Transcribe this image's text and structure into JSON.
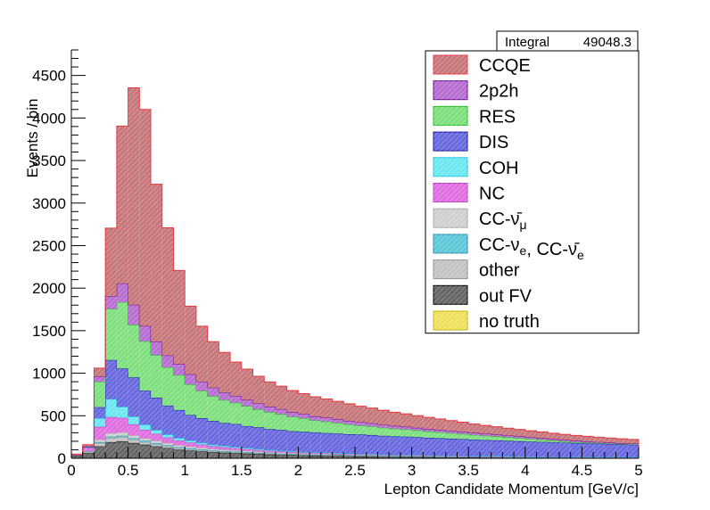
{
  "chart_data": {
    "type": "bar",
    "stacked": true,
    "xlabel": "Lepton Candidate Momentum [GeV/c]",
    "ylabel": "Events / bin",
    "xlim": [
      0,
      5
    ],
    "ylim": [
      0,
      4800
    ],
    "x_ticks": [
      0,
      0.5,
      1,
      1.5,
      2,
      2.5,
      3,
      3.5,
      4,
      4.5,
      5
    ],
    "x_tick_labels": [
      "0",
      "0.5",
      "1",
      "1.5",
      "2",
      "2.5",
      "3",
      "3.5",
      "4",
      "4.5",
      "5"
    ],
    "y_ticks": [
      0,
      500,
      1000,
      1500,
      2000,
      2500,
      3000,
      3500,
      4000,
      4500
    ],
    "y_tick_labels": [
      "0",
      "500",
      "1000",
      "1500",
      "2000",
      "2500",
      "3000",
      "3500",
      "4000",
      "4500"
    ],
    "stats": {
      "label": "Integral",
      "value": "49048.3"
    },
    "legend_position": "top-right",
    "legend": [
      {
        "label": "CCQE",
        "color": "#c8787d",
        "edge": "#e8383d"
      },
      {
        "label": "2p2h",
        "color": "#b86fd2",
        "edge": "#6a0d8f"
      },
      {
        "label": "RES",
        "color": "#80e080",
        "edge": "#22c022"
      },
      {
        "label": "DIS",
        "color": "#6a6ae0",
        "edge": "#1616a0"
      },
      {
        "label": "COH",
        "color": "#6ee8f0",
        "edge": "#20c8e0"
      },
      {
        "label": "NC",
        "color": "#e070e0",
        "edge": "#c040c0"
      },
      {
        "label": "CC-ν̄μ",
        "color": "#d0d0d0",
        "edge": "#a8a8a8"
      },
      {
        "label": "CC-νe, CC-ν̄e",
        "color": "#60c8d8",
        "edge": "#3090b0"
      },
      {
        "label": "other",
        "color": "#c4c4c4",
        "edge": "#909090"
      },
      {
        "label": "out FV",
        "color": "#666666",
        "edge": "#000000"
      },
      {
        "label": "no truth",
        "color": "#f0e060",
        "edge": "#c8b400"
      }
    ],
    "bin_edges": [
      0,
      0.1,
      0.2,
      0.3,
      0.4,
      0.5,
      0.6,
      0.7,
      0.8,
      0.9,
      1.0,
      1.1,
      1.2,
      1.3,
      1.4,
      1.5,
      1.6,
      1.7,
      1.8,
      1.9,
      2.0,
      2.1,
      2.2,
      2.3,
      2.4,
      2.5,
      2.6,
      2.7,
      2.8,
      2.9,
      3.0,
      3.1,
      3.2,
      3.3,
      3.4,
      3.5,
      3.6,
      3.7,
      3.8,
      3.9,
      4.0,
      4.1,
      4.2,
      4.3,
      4.4,
      4.5,
      4.6,
      4.7,
      4.8,
      4.9,
      5.0
    ],
    "series": [
      {
        "name": "out FV",
        "values": [
          30,
          60,
          140,
          190,
          200,
          180,
          160,
          140,
          120,
          100,
          90,
          80,
          70,
          65,
          60,
          55,
          50,
          45,
          40,
          38,
          35,
          32,
          30,
          28,
          26,
          24,
          22,
          20,
          18,
          17,
          16,
          15,
          14,
          13,
          12,
          11,
          10,
          10,
          9,
          9,
          8,
          8,
          7,
          7,
          6,
          6,
          6,
          5,
          5,
          5
        ]
      },
      {
        "name": "other",
        "values": [
          5,
          15,
          40,
          50,
          50,
          40,
          30,
          25,
          20,
          18,
          16,
          14,
          12,
          10,
          9,
          8,
          7,
          6,
          5,
          5,
          4,
          4,
          4,
          3,
          3,
          3,
          3,
          2,
          2,
          2,
          2,
          2,
          2,
          2,
          2,
          2,
          2,
          2,
          1,
          1,
          1,
          1,
          1,
          1,
          1,
          1,
          1,
          1,
          1,
          1
        ]
      },
      {
        "name": "CC-νe, CC-ν̄e",
        "values": [
          2,
          5,
          10,
          15,
          15,
          15,
          15,
          14,
          13,
          12,
          11,
          10,
          10,
          9,
          9,
          8,
          8,
          7,
          7,
          7,
          6,
          6,
          6,
          5,
          5,
          5,
          5,
          4,
          4,
          4,
          4,
          4,
          3,
          3,
          3,
          3,
          3,
          3,
          3,
          2,
          2,
          2,
          2,
          2,
          2,
          2,
          2,
          2,
          2,
          2
        ]
      },
      {
        "name": "CC-ν̄μ",
        "values": [
          0,
          5,
          30,
          40,
          40,
          35,
          30,
          28,
          26,
          24,
          22,
          20,
          18,
          17,
          16,
          15,
          14,
          13,
          12,
          12,
          11,
          10,
          10,
          9,
          9,
          8,
          8,
          8,
          7,
          7,
          7,
          6,
          6,
          6,
          6,
          5,
          5,
          5,
          5,
          5,
          4,
          4,
          4,
          4,
          4,
          4,
          3,
          3,
          3,
          3
        ]
      },
      {
        "name": "NC",
        "values": [
          5,
          40,
          150,
          190,
          170,
          130,
          100,
          80,
          65,
          55,
          45,
          38,
          32,
          28,
          24,
          21,
          18,
          16,
          14,
          12,
          11,
          10,
          9,
          8,
          7,
          7,
          6,
          6,
          5,
          5,
          5,
          4,
          4,
          4,
          4,
          3,
          3,
          3,
          3,
          3,
          3,
          2,
          2,
          2,
          2,
          2,
          2,
          2,
          2,
          2
        ]
      },
      {
        "name": "COH",
        "values": [
          0,
          5,
          100,
          210,
          130,
          90,
          60,
          45,
          35,
          28,
          24,
          20,
          18,
          16,
          14,
          13,
          12,
          11,
          10,
          9,
          8,
          8,
          7,
          7,
          6,
          6,
          6,
          5,
          5,
          5,
          4,
          4,
          4,
          4,
          4,
          3,
          3,
          3,
          3,
          3,
          3,
          3,
          2,
          2,
          2,
          2,
          2,
          2,
          2,
          2
        ]
      },
      {
        "name": "DIS",
        "values": [
          0,
          5,
          130,
          460,
          450,
          460,
          400,
          380,
          340,
          330,
          300,
          290,
          280,
          270,
          270,
          258,
          255,
          245,
          245,
          235,
          236,
          235,
          230,
          230,
          227,
          226,
          223,
          219,
          216,
          214,
          210,
          206,
          203,
          199,
          195,
          192,
          188,
          185,
          181,
          178,
          175,
          172,
          169,
          165,
          162,
          158,
          155,
          152,
          148,
          145
        ]
      },
      {
        "name": "RES",
        "values": [
          0,
          5,
          300,
          600,
          780,
          620,
          580,
          500,
          450,
          410,
          360,
          320,
          290,
          270,
          250,
          235,
          210,
          200,
          185,
          170,
          159,
          140,
          135,
          125,
          115,
          105,
          100,
          95,
          90,
          85,
          80,
          75,
          70,
          65,
          60,
          55,
          50,
          45,
          40,
          35,
          30,
          25,
          20,
          15,
          10,
          8,
          6,
          4,
          3,
          2
        ]
      },
      {
        "name": "2p2h",
        "values": [
          0,
          0,
          60,
          150,
          220,
          235,
          180,
          160,
          140,
          130,
          120,
          110,
          100,
          90,
          80,
          75,
          70,
          65,
          60,
          55,
          50,
          48,
          46,
          44,
          42,
          40,
          38,
          36,
          34,
          32,
          30,
          29,
          28,
          27,
          26,
          25,
          24,
          23,
          22,
          21,
          20,
          19,
          18,
          17,
          16,
          15,
          14,
          13,
          12,
          11
        ]
      },
      {
        "name": "CCQE",
        "values": [
          8,
          20,
          100,
          800,
          1850,
          2550,
          2545,
          1850,
          1500,
          1100,
          800,
          650,
          540,
          470,
          400,
          360,
          320,
          290,
          270,
          253,
          240,
          230,
          220,
          210,
          200,
          188,
          180,
          170,
          160,
          152,
          144,
          136,
          128,
          120,
          112,
          105,
          98,
          92,
          87,
          82,
          78,
          74,
          70,
          66,
          63,
          60,
          57,
          54,
          51,
          48
        ]
      }
    ]
  }
}
